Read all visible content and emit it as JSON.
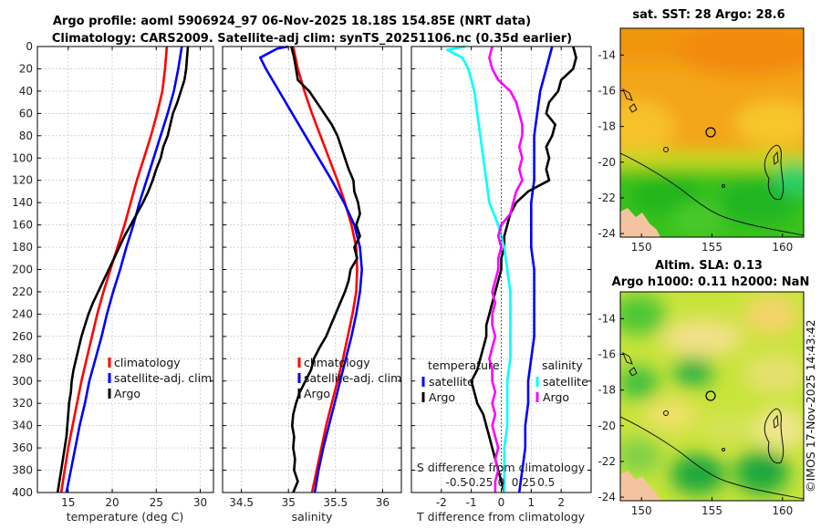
{
  "title_line1": "Argo profile: aoml 5906924_97 06-Nov-2025 18.18S 154.85E (NRT data)",
  "title_line2": "Climatology: CARS2009. Satellite-adj clim: synTS_20251106.nc (0.35d earlier)",
  "footer_stamp": "©IMOS 17-Nov-2025 14:43:42",
  "colors": {
    "climatology": "#ff0000",
    "satellite": "#0000ff",
    "argo": "#000000",
    "cyan": "#00ffff",
    "magenta": "#ff00ff"
  },
  "chart_data": [
    {
      "id": "temperature",
      "type": "line",
      "xlabel": "temperature (deg C)",
      "xlim": [
        11.5,
        31.5
      ],
      "xticks": [
        15,
        20,
        25,
        30
      ],
      "ylim": [
        0,
        400
      ],
      "yticks": [
        0,
        20,
        40,
        60,
        80,
        100,
        120,
        140,
        160,
        180,
        200,
        220,
        240,
        260,
        280,
        300,
        320,
        340,
        360,
        380,
        400
      ],
      "legend": [
        "climatology",
        "satellite-adj. clim",
        "Argo"
      ],
      "series": [
        {
          "name": "climatology",
          "color": "#ff0000",
          "depth": [
            0,
            20,
            40,
            60,
            80,
            100,
            120,
            140,
            160,
            180,
            200,
            220,
            240,
            260,
            280,
            300,
            320,
            340,
            360,
            380,
            400
          ],
          "values": [
            26.2,
            26.0,
            25.7,
            25.1,
            24.4,
            23.6,
            22.8,
            22.1,
            21.4,
            20.6,
            19.8,
            19.0,
            18.3,
            17.7,
            17.1,
            16.5,
            16.0,
            15.5,
            15.0,
            14.6,
            14.2
          ]
        },
        {
          "name": "satellite-adj. clim",
          "color": "#0000ff",
          "depth": [
            0,
            20,
            40,
            60,
            80,
            100,
            120,
            140,
            160,
            180,
            200,
            220,
            240,
            260,
            280,
            300,
            320,
            340,
            360,
            380,
            400
          ],
          "values": [
            27.9,
            27.5,
            27.0,
            26.3,
            25.5,
            24.7,
            23.9,
            23.1,
            22.4,
            21.6,
            20.9,
            20.1,
            19.4,
            18.8,
            18.1,
            17.4,
            16.9,
            16.3,
            15.8,
            15.3,
            14.8
          ]
        },
        {
          "name": "Argo",
          "color": "#000000",
          "depth": [
            0,
            10,
            20,
            30,
            40,
            50,
            60,
            70,
            80,
            90,
            100,
            110,
            120,
            130,
            140,
            150,
            160,
            170,
            180,
            190,
            200,
            210,
            220,
            230,
            240,
            250,
            260,
            270,
            280,
            290,
            300,
            310,
            320,
            330,
            340,
            350,
            360,
            370,
            380,
            390,
            400
          ],
          "values": [
            28.6,
            28.5,
            28.4,
            28.2,
            27.8,
            27.4,
            26.9,
            26.6,
            26.3,
            25.8,
            25.5,
            25.0,
            24.6,
            24.1,
            23.5,
            22.8,
            22.1,
            21.4,
            20.8,
            20.2,
            19.6,
            19.0,
            18.4,
            17.8,
            17.3,
            16.9,
            16.5,
            16.2,
            15.9,
            15.6,
            15.4,
            15.3,
            15.1,
            15.0,
            14.9,
            14.8,
            14.6,
            14.4,
            14.2,
            14.0,
            13.8
          ]
        }
      ]
    },
    {
      "id": "salinity",
      "type": "line",
      "xlabel": "salinity",
      "xlim": [
        34.3,
        36.2
      ],
      "xticks": [
        34.5,
        35,
        35.5,
        36
      ],
      "ylim": [
        0,
        400
      ],
      "legend": [
        "climatology",
        "satellite-adj. clim",
        "Argo"
      ],
      "series": [
        {
          "name": "climatology",
          "color": "#ff0000",
          "depth": [
            0,
            20,
            40,
            60,
            80,
            100,
            120,
            140,
            160,
            180,
            200,
            220,
            240,
            260,
            280,
            300,
            320,
            340,
            360,
            380,
            400
          ],
          "values": [
            35.05,
            35.1,
            35.17,
            35.25,
            35.34,
            35.43,
            35.52,
            35.6,
            35.67,
            35.72,
            35.73,
            35.72,
            35.68,
            35.63,
            35.58,
            35.52,
            35.46,
            35.4,
            35.35,
            35.3,
            35.25
          ]
        },
        {
          "name": "satellite-adj. clim",
          "color": "#0000ff",
          "depth": [
            0,
            2,
            10,
            20,
            40,
            60,
            80,
            100,
            120,
            140,
            160,
            180,
            200,
            220,
            240,
            260,
            280,
            300,
            320,
            340,
            360,
            380,
            400
          ],
          "values": [
            35.0,
            34.88,
            34.7,
            34.76,
            34.9,
            35.04,
            35.18,
            35.32,
            35.46,
            35.59,
            35.7,
            35.76,
            35.78,
            35.76,
            35.72,
            35.67,
            35.61,
            35.55,
            35.49,
            35.43,
            35.37,
            35.32,
            35.28
          ]
        },
        {
          "name": "Argo",
          "color": "#000000",
          "depth": [
            0,
            10,
            20,
            30,
            40,
            50,
            60,
            70,
            80,
            90,
            100,
            110,
            120,
            130,
            140,
            150,
            160,
            170,
            180,
            190,
            200,
            210,
            220,
            230,
            240,
            250,
            260,
            270,
            280,
            290,
            300,
            310,
            320,
            330,
            340,
            350,
            360,
            370,
            380,
            390,
            400
          ],
          "values": [
            35.03,
            35.06,
            35.08,
            35.1,
            35.22,
            35.3,
            35.38,
            35.46,
            35.52,
            35.56,
            35.6,
            35.64,
            35.69,
            35.7,
            35.74,
            35.76,
            35.72,
            35.76,
            35.7,
            35.73,
            35.66,
            35.64,
            35.6,
            35.55,
            35.5,
            35.45,
            35.4,
            35.33,
            35.27,
            35.24,
            35.18,
            35.12,
            35.08,
            35.05,
            35.04,
            35.06,
            35.05,
            35.07,
            35.06,
            35.1,
            35.05
          ]
        }
      ]
    },
    {
      "id": "difference",
      "type": "line",
      "xlabel": "T difference from climatology",
      "xlabel_top": "S difference from climatology",
      "xlim": [
        -3,
        3
      ],
      "xticks": [
        -2,
        -1,
        0,
        1,
        2
      ],
      "xticks_top_labels": [
        "-0.5",
        "-0.25",
        "0",
        "0.25",
        "0.5"
      ],
      "ylim": [
        0,
        400
      ],
      "legend_left_title": "temperature",
      "legend_right_title": "salinity",
      "legend_left": [
        "satellite",
        "Argo"
      ],
      "legend_right": [
        "satellite",
        "Argo"
      ],
      "series": [
        {
          "name": "temperature satellite",
          "color": "#0000ff",
          "depth": [
            0,
            20,
            40,
            60,
            80,
            100,
            120,
            140,
            160,
            180,
            200,
            220,
            240,
            260,
            280,
            300,
            320,
            340,
            360,
            380,
            400
          ],
          "values": [
            1.7,
            1.5,
            1.3,
            1.2,
            1.1,
            1.1,
            1.1,
            1.0,
            1.0,
            1.0,
            1.1,
            1.1,
            1.1,
            1.1,
            1.0,
            0.9,
            0.9,
            0.8,
            0.8,
            0.7,
            0.6
          ]
        },
        {
          "name": "temperature Argo",
          "color": "#000000",
          "depth": [
            0,
            10,
            20,
            30,
            40,
            50,
            60,
            70,
            80,
            90,
            100,
            110,
            120,
            130,
            140,
            150,
            160,
            170,
            180,
            190,
            200,
            210,
            220,
            230,
            240,
            250,
            260,
            270,
            280,
            290,
            300,
            310,
            320,
            330,
            340,
            350,
            360,
            370,
            380,
            390,
            400
          ],
          "values": [
            2.4,
            2.5,
            2.4,
            2.0,
            1.9,
            1.6,
            1.5,
            1.8,
            1.7,
            1.5,
            1.6,
            1.5,
            1.6,
            0.9,
            0.5,
            0.3,
            0.2,
            0.1,
            0.1,
            0.0,
            0.0,
            -0.1,
            -0.2,
            -0.3,
            -0.4,
            -0.5,
            -0.5,
            -0.6,
            -0.7,
            -0.8,
            -1.0,
            -0.9,
            -0.8,
            -0.6,
            -0.5,
            -0.4,
            -0.3,
            -0.2,
            -0.1,
            0.0,
            0.1
          ]
        },
        {
          "name": "salinity satellite",
          "color": "#00ffff",
          "depth": [
            0,
            3,
            10,
            20,
            40,
            60,
            80,
            100,
            120,
            140,
            160,
            180,
            200,
            220,
            240,
            260,
            280,
            300,
            320,
            340,
            360,
            380,
            400
          ],
          "values": [
            -1.2,
            -1.8,
            -1.3,
            -1.1,
            -0.9,
            -0.8,
            -0.7,
            -0.6,
            -0.5,
            -0.4,
            -0.1,
            0.1,
            0.2,
            0.3,
            0.3,
            0.3,
            0.3,
            0.2,
            0.2,
            0.2,
            0.1,
            0.1,
            0.1
          ]
        },
        {
          "name": "salinity Argo",
          "color": "#ff00ff",
          "depth": [
            0,
            10,
            20,
            30,
            40,
            50,
            60,
            70,
            80,
            90,
            100,
            110,
            120,
            130,
            140,
            150,
            160,
            170,
            180,
            190,
            200,
            210,
            220,
            230,
            240,
            250,
            260,
            270,
            280,
            290,
            300,
            310,
            320,
            330,
            340,
            350,
            360,
            370,
            380,
            390,
            400
          ],
          "values": [
            -0.3,
            -0.4,
            -0.3,
            -0.1,
            0.3,
            0.5,
            0.6,
            0.7,
            0.7,
            0.6,
            0.7,
            0.6,
            0.7,
            0.5,
            0.4,
            0.3,
            0.0,
            -0.1,
            0.0,
            -0.1,
            -0.1,
            -0.2,
            -0.3,
            -0.2,
            -0.3,
            -0.3,
            -0.2,
            -0.3,
            -0.4,
            -0.3,
            -0.3,
            -0.2,
            -0.3,
            -0.2,
            -0.3,
            -0.2,
            -0.1,
            -0.2,
            -0.1,
            -0.2,
            -0.2
          ]
        }
      ]
    },
    {
      "id": "sst-map",
      "type": "heatmap",
      "title": "sat. SST: 28 Argo: 28.6",
      "xticks": [
        150,
        155,
        160
      ],
      "yticks": [
        -14,
        -16,
        -18,
        -20,
        -22,
        -24
      ],
      "xlim": [
        148.5,
        161.5
      ],
      "ylim": [
        -24.2,
        -12.5
      ],
      "marker": {
        "lon": 154.85,
        "lat": -18.18
      }
    },
    {
      "id": "sla-map",
      "type": "heatmap",
      "title": "Altim. SLA: 0.13",
      "title_line2": "Argo h1000: 0.11 h2000: NaN",
      "xticks": [
        150,
        155,
        160
      ],
      "yticks": [
        -14,
        -16,
        -18,
        -20,
        -22,
        -24
      ],
      "xlim": [
        148.5,
        161.5
      ],
      "ylim": [
        -24.2,
        -12.5
      ],
      "marker": {
        "lon": 154.85,
        "lat": -18.18
      }
    }
  ]
}
